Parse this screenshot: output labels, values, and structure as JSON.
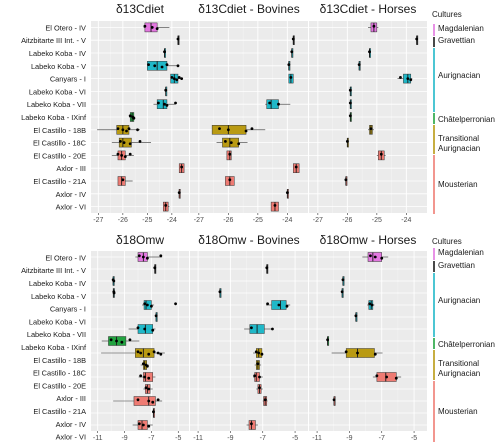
{
  "rows": [
    "El Otero - IV",
    "Aitzbitarte III Int. - V",
    "Labeko Koba - IV",
    "Labeko Koba - V",
    "Canyars - I",
    "Labeko Koba - VI",
    "Labeko Koba - VII",
    "Labeko Koba - IXinf",
    "El Castillo - 18B",
    "El Castillo - 18C",
    "El Castillo - 20E",
    "Axlor - III",
    "El Castillo - 21A",
    "Axlor - IV",
    "Axlor - VI"
  ],
  "culture_colors": {
    "Magdalenian": "#e377e0",
    "Gravettian": "#1a1a1a",
    "Aurignacian": "#1fb8c8",
    "Chatelperronian": "#22a340",
    "Transitional Aurignacian": "#b99a12",
    "Mousterian": "#ee7b73"
  },
  "row_cultures": [
    "Magdalenian",
    "Gravettian",
    "Aurignacian",
    "Aurignacian",
    "Aurignacian",
    "Aurignacian",
    "Aurignacian",
    "Chatelperronian",
    "Transitional Aurignacian",
    "Transitional Aurignacian",
    "Mousterian",
    "Mousterian",
    "Mousterian",
    "Mousterian",
    "Mousterian"
  ],
  "legend": {
    "title": "Cultures",
    "items": [
      {
        "label": "Magdalenian",
        "culture": "Magdalenian"
      },
      {
        "label": "Gravettian",
        "culture": "Gravettian"
      },
      {
        "label": "Aurignacian",
        "culture": "Aurignacian"
      },
      {
        "label": "Châtelperronian",
        "culture": "Chatelperronian"
      },
      {
        "label": "Transitional\nAurignacian",
        "culture": "Transitional Aurignacian"
      },
      {
        "label": "Mousterian",
        "culture": "Mousterian"
      }
    ]
  },
  "chart_data": [
    {
      "type": "box",
      "title": "δ13Cdiet",
      "xlim": [
        -27.3,
        -23.3
      ],
      "xticks": [
        -27,
        -26,
        -25,
        -24
      ],
      "boxes": [
        {
          "row": 0,
          "min": -25.15,
          "q1": -25.1,
          "median": -24.85,
          "q3": -24.6,
          "max": -24.1,
          "points": [
            -25.1,
            -24.8,
            -24.6
          ]
        },
        {
          "row": 1,
          "min": -23.75,
          "q1": -23.75,
          "median": -23.75,
          "q3": -23.75,
          "max": -23.75,
          "points": [
            -23.75
          ]
        },
        {
          "row": 2,
          "min": -24.3,
          "q1": -24.3,
          "median": -24.3,
          "q3": -24.3,
          "max": -24.3,
          "points": [
            -24.3
          ]
        },
        {
          "row": 3,
          "min": -25.0,
          "q1": -25.0,
          "median": -24.6,
          "q3": -24.2,
          "max": -23.7,
          "points": [
            -24.95,
            -24.7,
            -24.4,
            -24.2,
            -23.75
          ]
        },
        {
          "row": 4,
          "min": -24.05,
          "q1": -24.05,
          "median": -23.9,
          "q3": -23.75,
          "max": -23.6,
          "points": [
            -24.0,
            -23.9,
            -23.8,
            -23.7,
            -23.6
          ]
        },
        {
          "row": 5,
          "min": -24.25,
          "q1": -24.25,
          "median": -24.25,
          "q3": -24.25,
          "max": -24.25,
          "points": [
            -24.25
          ]
        },
        {
          "row": 6,
          "min": -24.75,
          "q1": -24.6,
          "median": -24.35,
          "q3": -24.2,
          "max": -23.85,
          "points": [
            -24.55,
            -24.3,
            -24.2,
            -23.85
          ]
        },
        {
          "row": 7,
          "min": -25.75,
          "q1": -25.7,
          "median": -25.62,
          "q3": -25.55,
          "max": -25.5,
          "points": [
            -25.7,
            -25.6,
            -25.55
          ]
        },
        {
          "row": 8,
          "min": -27.05,
          "q1": -26.25,
          "median": -26.0,
          "q3": -25.75,
          "max": -25.3,
          "points": [
            -26.2,
            -26.0,
            -25.85,
            -25.75,
            -25.4
          ]
        },
        {
          "row": 9,
          "min": -26.45,
          "q1": -26.15,
          "median": -26.0,
          "q3": -25.65,
          "max": -24.85,
          "points": [
            -26.1,
            -25.95,
            -25.7,
            -25.3
          ]
        },
        {
          "row": 10,
          "min": -26.45,
          "q1": -26.2,
          "median": -26.05,
          "q3": -25.9,
          "max": -25.55,
          "points": [
            -26.2,
            -26.05,
            -25.9,
            -25.7
          ]
        },
        {
          "row": 11,
          "min": -23.7,
          "q1": -23.7,
          "median": -23.6,
          "q3": -23.5,
          "max": -23.5,
          "points": [
            -23.6
          ]
        },
        {
          "row": 12,
          "min": -26.2,
          "q1": -26.2,
          "median": -26.05,
          "q3": -25.9,
          "max": -25.6,
          "points": [
            -26.0
          ]
        },
        {
          "row": 13,
          "min": -23.7,
          "q1": -23.7,
          "median": -23.7,
          "q3": -23.7,
          "max": -23.7,
          "points": [
            -23.7
          ]
        },
        {
          "row": 14,
          "min": -24.35,
          "q1": -24.35,
          "median": -24.25,
          "q3": -24.15,
          "max": -24.1,
          "points": [
            -24.25
          ]
        }
      ]
    },
    {
      "type": "box",
      "title": "δ13Cdiet - Bovines",
      "xlim": [
        -27.3,
        -23.3
      ],
      "xticks": [
        -27,
        -26,
        -25,
        -24
      ],
      "boxes": [
        {
          "row": 1,
          "min": -23.8,
          "q1": -23.8,
          "median": -23.8,
          "q3": -23.8,
          "max": -23.8,
          "points": [
            -23.8
          ]
        },
        {
          "row": 2,
          "min": -23.85,
          "q1": -23.85,
          "median": -23.85,
          "q3": -23.85,
          "max": -23.85,
          "points": [
            -23.85
          ]
        },
        {
          "row": 3,
          "min": -23.95,
          "q1": -23.95,
          "median": -23.95,
          "q3": -23.95,
          "max": -23.95,
          "points": [
            -23.95
          ]
        },
        {
          "row": 4,
          "min": -23.95,
          "q1": -23.95,
          "median": -23.88,
          "q3": -23.8,
          "max": -23.8,
          "points": [
            -23.88
          ]
        },
        {
          "row": 6,
          "min": -24.75,
          "q1": -24.7,
          "median": -24.55,
          "q3": -24.3,
          "max": -23.9,
          "points": [
            -24.6,
            -24.3
          ]
        },
        {
          "row": 8,
          "min": -26.55,
          "q1": -26.55,
          "median": -26.0,
          "q3": -25.4,
          "max": -24.75,
          "points": [
            -26.3,
            -26.0,
            -25.4,
            -25.2
          ]
        },
        {
          "row": 9,
          "min": -26.4,
          "q1": -26.2,
          "median": -25.95,
          "q3": -25.65,
          "max": -25.35,
          "points": [
            -26.1,
            -25.9,
            -25.65
          ]
        },
        {
          "row": 10,
          "min": -26.05,
          "q1": -26.05,
          "median": -25.95,
          "q3": -25.9,
          "max": -25.9,
          "points": [
            -25.95
          ]
        },
        {
          "row": 11,
          "min": -23.8,
          "q1": -23.8,
          "median": -23.7,
          "q3": -23.6,
          "max": -23.6,
          "points": [
            -23.7
          ]
        },
        {
          "row": 12,
          "min": -26.1,
          "q1": -26.1,
          "median": -25.95,
          "q3": -25.8,
          "max": -25.8,
          "points": [
            -25.95
          ]
        },
        {
          "row": 13,
          "min": -24.0,
          "q1": -24.0,
          "median": -24.0,
          "q3": -24.0,
          "max": -24.0,
          "points": [
            -24.0
          ]
        },
        {
          "row": 14,
          "min": -24.55,
          "q1": -24.55,
          "median": -24.42,
          "q3": -24.3,
          "max": -24.3,
          "points": [
            -24.42
          ]
        }
      ]
    },
    {
      "type": "box",
      "title": "δ13Cdiet - Horses",
      "xlim": [
        -27.3,
        -23.3
      ],
      "xticks": [
        -27,
        -26,
        -25,
        -24
      ],
      "boxes": [
        {
          "row": 0,
          "min": -25.3,
          "q1": -25.2,
          "median": -25.1,
          "q3": -25.0,
          "max": -24.95,
          "points": [
            -25.1
          ]
        },
        {
          "row": 1,
          "min": -23.65,
          "q1": -23.65,
          "median": -23.65,
          "q3": -23.65,
          "max": -23.65,
          "points": [
            -23.65
          ]
        },
        {
          "row": 2,
          "min": -25.25,
          "q1": -25.25,
          "median": -25.25,
          "q3": -25.25,
          "max": -25.25,
          "points": [
            -25.25
          ]
        },
        {
          "row": 3,
          "min": -25.6,
          "q1": -25.6,
          "median": -25.6,
          "q3": -25.6,
          "max": -25.6,
          "points": [
            -25.6
          ]
        },
        {
          "row": 4,
          "min": -24.3,
          "q1": -24.1,
          "median": -23.95,
          "q3": -23.85,
          "max": -23.8,
          "points": [
            -24.2,
            -23.95,
            -23.85
          ]
        },
        {
          "row": 5,
          "min": -25.9,
          "q1": -25.9,
          "median": -25.9,
          "q3": -25.9,
          "max": -25.9,
          "points": [
            -25.9
          ]
        },
        {
          "row": 6,
          "min": -25.9,
          "q1": -25.9,
          "median": -25.9,
          "q3": -25.9,
          "max": -25.9,
          "points": [
            -25.9
          ]
        },
        {
          "row": 7,
          "min": -25.9,
          "q1": -25.9,
          "median": -25.9,
          "q3": -25.9,
          "max": -25.9,
          "points": [
            -25.9
          ]
        },
        {
          "row": 8,
          "min": -25.3,
          "q1": -25.25,
          "median": -25.2,
          "q3": -25.15,
          "max": -25.1,
          "points": [
            -25.2
          ]
        },
        {
          "row": 9,
          "min": -26.0,
          "q1": -26.0,
          "median": -26.0,
          "q3": -26.0,
          "max": -26.0,
          "points": [
            -26.0
          ]
        },
        {
          "row": 10,
          "min": -25.0,
          "q1": -24.95,
          "median": -24.85,
          "q3": -24.75,
          "max": -24.7,
          "points": [
            -24.85
          ]
        },
        {
          "row": 12,
          "min": -26.05,
          "q1": -26.05,
          "median": -26.05,
          "q3": -26.05,
          "max": -26.05,
          "points": [
            -26.05
          ]
        }
      ]
    },
    {
      "type": "box",
      "title": "δ18Omw",
      "xlim": [
        -11.5,
        -4.2
      ],
      "xticks": [
        -11,
        -9,
        -7,
        -5
      ],
      "boxes": [
        {
          "row": 0,
          "min": -8.2,
          "q1": -8.0,
          "median": -7.6,
          "q3": -7.3,
          "max": -6.2,
          "points": [
            -7.9,
            -7.6,
            -7.3,
            -6.3
          ]
        },
        {
          "row": 1,
          "min": -6.75,
          "q1": -6.75,
          "median": -6.75,
          "q3": -6.75,
          "max": -6.75,
          "points": [
            -6.75
          ]
        },
        {
          "row": 2,
          "min": -9.85,
          "q1": -9.85,
          "median": -9.85,
          "q3": -9.85,
          "max": -9.85,
          "points": [
            -9.85,
            -9.8
          ]
        },
        {
          "row": 3,
          "min": -9.85,
          "q1": -9.85,
          "median": -9.8,
          "q3": -9.75,
          "max": -9.75,
          "points": [
            -9.8,
            -9.78
          ]
        },
        {
          "row": 4,
          "min": -7.7,
          "q1": -7.55,
          "median": -7.4,
          "q3": -7.0,
          "max": -6.8,
          "points": [
            -7.5,
            -7.3,
            -7.0,
            -5.2
          ]
        },
        {
          "row": 5,
          "min": -6.65,
          "q1": -6.65,
          "median": -6.65,
          "q3": -6.65,
          "max": -6.65,
          "points": [
            -6.65
          ]
        },
        {
          "row": 6,
          "min": -8.7,
          "q1": -8.0,
          "median": -7.45,
          "q3": -6.9,
          "max": -6.7,
          "points": [
            -8.0,
            -7.5,
            -6.9
          ]
        },
        {
          "row": 7,
          "min": -10.7,
          "q1": -10.2,
          "median": -9.6,
          "q3": -8.9,
          "max": -7.9,
          "points": [
            -10.0,
            -9.6,
            -9.2,
            -8.6
          ]
        },
        {
          "row": 8,
          "min": -10.75,
          "q1": -8.2,
          "median": -7.6,
          "q3": -6.8,
          "max": -6.0,
          "points": [
            -8.0,
            -7.8,
            -7.2,
            -6.8,
            -6.5,
            -6.3
          ]
        },
        {
          "row": 9,
          "min": -7.8,
          "q1": -7.6,
          "median": -7.5,
          "q3": -7.35,
          "max": -7.2,
          "points": [
            -7.6,
            -7.4,
            -7.3
          ]
        },
        {
          "row": 10,
          "min": -7.95,
          "q1": -7.6,
          "median": -7.45,
          "q3": -6.9,
          "max": -6.7,
          "points": [
            -7.8,
            -7.5,
            -7.2
          ]
        },
        {
          "row": 11,
          "min": -7.6,
          "q1": -7.45,
          "median": -7.3,
          "q3": -7.1,
          "max": -6.9,
          "points": [
            -7.4,
            -7.2
          ]
        },
        {
          "row": 12,
          "min": -9.85,
          "q1": -8.3,
          "median": -7.2,
          "q3": -6.7,
          "max": -6.2,
          "points": [
            -8.0,
            -7.2,
            -6.9,
            -6.5
          ]
        },
        {
          "row": 13,
          "min": -6.85,
          "q1": -6.85,
          "median": -6.85,
          "q3": -6.85,
          "max": -6.85,
          "points": [
            -6.85
          ]
        },
        {
          "row": 14,
          "min": -8.4,
          "q1": -8.0,
          "median": -7.7,
          "q3": -7.3,
          "max": -6.9,
          "points": [
            -7.9,
            -7.6,
            -7.2
          ]
        }
      ]
    },
    {
      "type": "box",
      "title": "δ18Omw - Bovines",
      "xlim": [
        -11.5,
        -4.2
      ],
      "xticks": [
        -11,
        -9,
        -7,
        -5
      ],
      "boxes": [
        {
          "row": 1,
          "min": -6.75,
          "q1": -6.75,
          "median": -6.75,
          "q3": -6.75,
          "max": -6.75,
          "points": [
            -6.75
          ]
        },
        {
          "row": 3,
          "min": -9.65,
          "q1": -9.65,
          "median": -9.65,
          "q3": -9.65,
          "max": -9.65,
          "points": [
            -9.65
          ]
        },
        {
          "row": 4,
          "min": -6.8,
          "q1": -6.45,
          "median": -5.9,
          "q3": -5.55,
          "max": -5.3,
          "points": [
            -6.7,
            -6.0,
            -5.5
          ]
        },
        {
          "row": 6,
          "min": -8.15,
          "q1": -7.8,
          "median": -7.35,
          "q3": -6.9,
          "max": -6.35,
          "points": [
            -7.7,
            -6.4
          ]
        },
        {
          "row": 8,
          "min": -7.6,
          "q1": -7.4,
          "median": -7.25,
          "q3": -7.05,
          "max": -7.0,
          "points": [
            -7.4,
            -7.25,
            -7.05
          ]
        },
        {
          "row": 9,
          "min": -7.5,
          "q1": -7.4,
          "median": -7.3,
          "q3": -7.2,
          "max": -7.1,
          "points": [
            -7.3
          ]
        },
        {
          "row": 10,
          "min": -7.6,
          "q1": -7.5,
          "median": -7.4,
          "q3": -7.2,
          "max": -7.0,
          "points": [
            -7.5,
            -7.2
          ]
        },
        {
          "row": 11,
          "min": -7.4,
          "q1": -7.3,
          "median": -7.2,
          "q3": -7.1,
          "max": -7.0,
          "points": [
            -7.2
          ]
        },
        {
          "row": 12,
          "min": -7.0,
          "q1": -6.95,
          "median": -6.85,
          "q3": -6.75,
          "max": -6.7,
          "points": [
            -6.85
          ]
        },
        {
          "row": 14,
          "min": -8.0,
          "q1": -7.85,
          "median": -7.7,
          "q3": -7.45,
          "max": -7.3,
          "points": [
            -7.7
          ]
        }
      ]
    },
    {
      "type": "box",
      "title": "δ18Omw - Horses",
      "xlim": [
        -11.5,
        -4.2
      ],
      "xticks": [
        -11,
        -9,
        -7,
        -5
      ],
      "boxes": [
        {
          "row": 0,
          "min": -8.2,
          "q1": -7.85,
          "median": -7.55,
          "q3": -7.0,
          "max": -6.6,
          "points": [
            -7.7,
            -7.4,
            -7.0
          ]
        },
        {
          "row": 2,
          "min": -9.4,
          "q1": -9.4,
          "median": -9.4,
          "q3": -9.4,
          "max": -9.4,
          "points": [
            -9.4
          ]
        },
        {
          "row": 3,
          "min": -9.45,
          "q1": -9.45,
          "median": -9.45,
          "q3": -9.45,
          "max": -9.45,
          "points": [
            -9.45
          ]
        },
        {
          "row": 4,
          "min": -7.9,
          "q1": -7.8,
          "median": -7.65,
          "q3": -7.55,
          "max": -7.45,
          "points": [
            -7.75,
            -7.6
          ]
        },
        {
          "row": 5,
          "min": -8.6,
          "q1": -8.6,
          "median": -8.6,
          "q3": -8.6,
          "max": -8.6,
          "points": [
            -8.6
          ]
        },
        {
          "row": 7,
          "min": -10.35,
          "q1": -10.35,
          "median": -10.35,
          "q3": -10.35,
          "max": -10.35,
          "points": [
            -10.35
          ]
        },
        {
          "row": 8,
          "min": -10.1,
          "q1": -9.2,
          "median": -8.5,
          "q3": -7.45,
          "max": -6.95,
          "points": [
            -9.2,
            -8.5,
            -7.4
          ]
        },
        {
          "row": 10,
          "min": -7.55,
          "q1": -7.3,
          "median": -6.75,
          "q3": -6.1,
          "max": -5.8,
          "points": [
            -7.3,
            -6.7,
            -6.1
          ]
        },
        {
          "row": 12,
          "min": -9.95,
          "q1": -9.95,
          "median": -9.95,
          "q3": -9.95,
          "max": -9.95,
          "points": [
            -9.95
          ]
        }
      ]
    }
  ]
}
